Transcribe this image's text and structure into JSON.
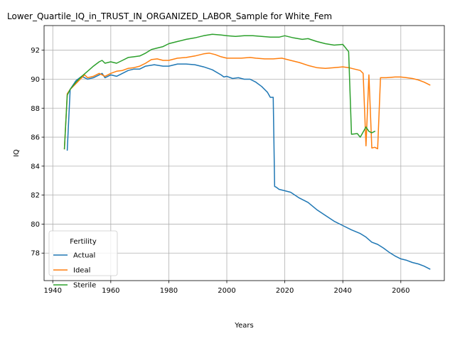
{
  "chart_data": {
    "type": "line",
    "title": "Lower_Quartile_IQ_in_TRUST_IN_ORGANIZED_LABOR_Sample for White_Fem",
    "xlabel": "Years",
    "ylabel": "IQ",
    "xlim": [
      1937,
      2075
    ],
    "ylim": [
      76.1,
      93.7
    ],
    "xticks": [
      1940,
      1960,
      1980,
      2000,
      2020,
      2040,
      2060
    ],
    "yticks": [
      78,
      80,
      82,
      84,
      86,
      88,
      90,
      92
    ],
    "grid": true,
    "legend": {
      "title": "Fertility",
      "placement": "lower-left"
    },
    "series": [
      {
        "name": "Actual",
        "color": "#1f77b4",
        "points": [
          [
            1945,
            85.1
          ],
          [
            1946,
            89.3
          ],
          [
            1948,
            89.9
          ],
          [
            1950,
            90.2
          ],
          [
            1952,
            90.0
          ],
          [
            1954,
            90.1
          ],
          [
            1956,
            90.3
          ],
          [
            1957,
            90.4
          ],
          [
            1958,
            90.1
          ],
          [
            1960,
            90.3
          ],
          [
            1962,
            90.2
          ],
          [
            1964,
            90.4
          ],
          [
            1966,
            90.6
          ],
          [
            1968,
            90.7
          ],
          [
            1970,
            90.7
          ],
          [
            1972,
            90.9
          ],
          [
            1975,
            91.0
          ],
          [
            1978,
            90.9
          ],
          [
            1980,
            90.9
          ],
          [
            1983,
            91.05
          ],
          [
            1986,
            91.05
          ],
          [
            1989,
            91.0
          ],
          [
            1992,
            90.85
          ],
          [
            1995,
            90.65
          ],
          [
            1998,
            90.3
          ],
          [
            1999,
            90.15
          ],
          [
            2000,
            90.2
          ],
          [
            2002,
            90.05
          ],
          [
            2004,
            90.1
          ],
          [
            2006,
            90.0
          ],
          [
            2008,
            90.0
          ],
          [
            2010,
            89.8
          ],
          [
            2012,
            89.5
          ],
          [
            2014,
            89.1
          ],
          [
            2015,
            88.75
          ],
          [
            2016,
            88.75
          ],
          [
            2016.5,
            82.6
          ],
          [
            2017,
            82.55
          ],
          [
            2018,
            82.4
          ],
          [
            2020,
            82.3
          ],
          [
            2022,
            82.2
          ],
          [
            2025,
            81.8
          ],
          [
            2028,
            81.5
          ],
          [
            2031,
            81.0
          ],
          [
            2034,
            80.6
          ],
          [
            2037,
            80.2
          ],
          [
            2040,
            79.9
          ],
          [
            2043,
            79.6
          ],
          [
            2046,
            79.35
          ],
          [
            2048,
            79.1
          ],
          [
            2050,
            78.75
          ],
          [
            2052,
            78.6
          ],
          [
            2054,
            78.35
          ],
          [
            2056,
            78.05
          ],
          [
            2058,
            77.8
          ],
          [
            2060,
            77.6
          ],
          [
            2062,
            77.5
          ],
          [
            2064,
            77.35
          ],
          [
            2066,
            77.25
          ],
          [
            2068,
            77.1
          ],
          [
            2070,
            76.9
          ]
        ]
      },
      {
        "name": "Ideal",
        "color": "#ff7f0e",
        "points": [
          [
            1944,
            85.2
          ],
          [
            1945,
            89.0
          ],
          [
            1946,
            89.3
          ],
          [
            1948,
            89.7
          ],
          [
            1950,
            90.1
          ],
          [
            1951,
            90.3
          ],
          [
            1952,
            90.1
          ],
          [
            1954,
            90.2
          ],
          [
            1956,
            90.4
          ],
          [
            1958,
            90.2
          ],
          [
            1960,
            90.4
          ],
          [
            1962,
            90.55
          ],
          [
            1964,
            90.6
          ],
          [
            1966,
            90.75
          ],
          [
            1968,
            90.8
          ],
          [
            1970,
            90.9
          ],
          [
            1972,
            91.1
          ],
          [
            1974,
            91.35
          ],
          [
            1976,
            91.4
          ],
          [
            1978,
            91.3
          ],
          [
            1980,
            91.3
          ],
          [
            1983,
            91.45
          ],
          [
            1986,
            91.5
          ],
          [
            1989,
            91.6
          ],
          [
            1992,
            91.75
          ],
          [
            1994,
            91.8
          ],
          [
            1996,
            91.7
          ],
          [
            1998,
            91.55
          ],
          [
            2000,
            91.45
          ],
          [
            2002,
            91.45
          ],
          [
            2005,
            91.45
          ],
          [
            2008,
            91.5
          ],
          [
            2010,
            91.45
          ],
          [
            2013,
            91.4
          ],
          [
            2016,
            91.4
          ],
          [
            2019,
            91.45
          ],
          [
            2022,
            91.3
          ],
          [
            2025,
            91.15
          ],
          [
            2028,
            90.95
          ],
          [
            2031,
            90.8
          ],
          [
            2034,
            90.75
          ],
          [
            2037,
            90.8
          ],
          [
            2040,
            90.85
          ],
          [
            2042,
            90.8
          ],
          [
            2044,
            90.7
          ],
          [
            2046,
            90.6
          ],
          [
            2047,
            90.4
          ],
          [
            2048,
            85.4
          ],
          [
            2049,
            90.3
          ],
          [
            2050,
            85.25
          ],
          [
            2051,
            85.3
          ],
          [
            2052,
            85.2
          ],
          [
            2053,
            90.1
          ],
          [
            2055,
            90.1
          ],
          [
            2058,
            90.15
          ],
          [
            2060,
            90.15
          ],
          [
            2062,
            90.1
          ],
          [
            2064,
            90.05
          ],
          [
            2066,
            89.95
          ],
          [
            2068,
            89.8
          ],
          [
            2070,
            89.6
          ]
        ]
      },
      {
        "name": "Sterile",
        "color": "#2ca02c",
        "points": [
          [
            1944,
            85.2
          ],
          [
            1945,
            88.9
          ],
          [
            1946,
            89.3
          ],
          [
            1948,
            89.8
          ],
          [
            1950,
            90.2
          ],
          [
            1952,
            90.55
          ],
          [
            1954,
            90.9
          ],
          [
            1956,
            91.2
          ],
          [
            1957,
            91.3
          ],
          [
            1958,
            91.1
          ],
          [
            1960,
            91.2
          ],
          [
            1962,
            91.1
          ],
          [
            1964,
            91.3
          ],
          [
            1966,
            91.5
          ],
          [
            1968,
            91.55
          ],
          [
            1970,
            91.6
          ],
          [
            1972,
            91.8
          ],
          [
            1974,
            92.05
          ],
          [
            1976,
            92.15
          ],
          [
            1978,
            92.25
          ],
          [
            1980,
            92.45
          ],
          [
            1983,
            92.6
          ],
          [
            1986,
            92.75
          ],
          [
            1989,
            92.85
          ],
          [
            1992,
            93.0
          ],
          [
            1995,
            93.1
          ],
          [
            1998,
            93.05
          ],
          [
            2000,
            93.0
          ],
          [
            2003,
            92.95
          ],
          [
            2006,
            93.0
          ],
          [
            2009,
            93.0
          ],
          [
            2012,
            92.95
          ],
          [
            2015,
            92.9
          ],
          [
            2018,
            92.9
          ],
          [
            2020,
            93.0
          ],
          [
            2023,
            92.85
          ],
          [
            2026,
            92.75
          ],
          [
            2028,
            92.8
          ],
          [
            2031,
            92.6
          ],
          [
            2034,
            92.45
          ],
          [
            2037,
            92.35
          ],
          [
            2040,
            92.4
          ],
          [
            2042,
            91.9
          ],
          [
            2043,
            86.2
          ],
          [
            2045,
            86.25
          ],
          [
            2046,
            86.0
          ],
          [
            2048,
            86.7
          ],
          [
            2049,
            86.4
          ],
          [
            2050,
            86.3
          ],
          [
            2051,
            86.4
          ]
        ]
      }
    ]
  }
}
